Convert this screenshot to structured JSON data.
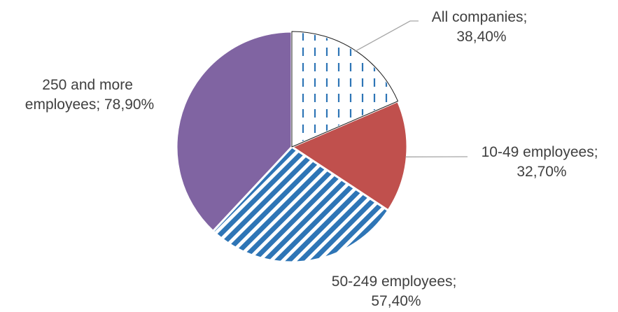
{
  "chart_data": {
    "type": "pie",
    "title": "",
    "categories": [
      "All companies",
      "10-49 employees",
      "50-249 employees",
      "250 and more employees"
    ],
    "values": [
      38.4,
      32.7,
      57.4,
      78.9
    ],
    "labels": [
      {
        "category": "All companies",
        "value_text": "38,40%"
      },
      {
        "category": "10-49 employees",
        "value_text": "32,70%"
      },
      {
        "category": "50-249 employees",
        "value_text": "57,40%"
      },
      {
        "category": "250 and more employees",
        "value_text": "78,90%"
      }
    ],
    "slice_colors": [
      "#2e75b6",
      "#c0504d",
      "#2e75b6",
      "#8064a2"
    ],
    "slice_patterns": [
      "dashed-vertical",
      "solid",
      "diagonal-stripes",
      "solid"
    ],
    "start_angle_deg": 0,
    "direction": "clockwise",
    "legend": "none"
  }
}
